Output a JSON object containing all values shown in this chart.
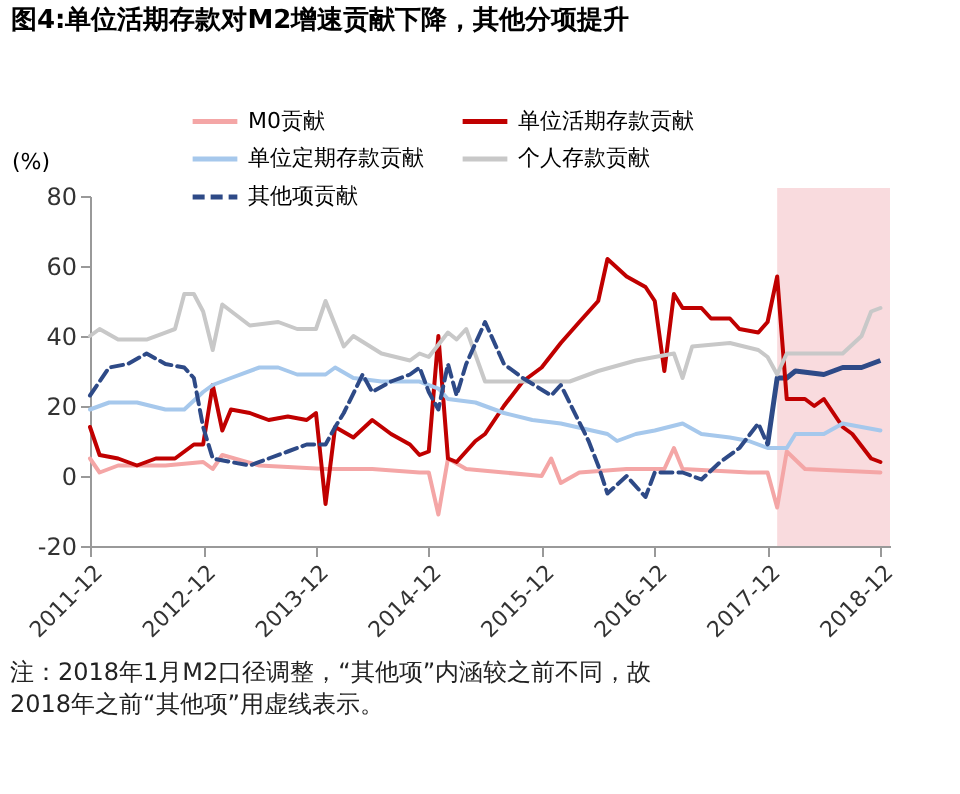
{
  "chart_data": {
    "type": "line",
    "title": "图4:单位活期存款对M2增速贡献下降，其他分项提升",
    "ylabel": "(%)",
    "xlim": [
      "2011-12",
      "2019-01"
    ],
    "xticks": [
      "2011-12",
      "2012-12",
      "2013-12",
      "2014-12",
      "2015-12",
      "2016-12",
      "2017-12",
      "2018-12"
    ],
    "ylim": [
      -20,
      80
    ],
    "yticks": [
      -20,
      0,
      20,
      40,
      60,
      80
    ],
    "grid": false,
    "legend": "top",
    "marker": "none",
    "bands": [
      {
        "axis": "x",
        "from": "2018-01",
        "to": "2019-01",
        "color": "#f8d7da"
      }
    ],
    "series": [
      {
        "name": "M0贡献",
        "color": "#f4a6a6",
        "line_style": "solid",
        "x": [
          "2011-12",
          "2012-01",
          "2012-03",
          "2012-08",
          "2012-12",
          "2013-01",
          "2013-02",
          "2013-06",
          "2014-01",
          "2014-06",
          "2014-11",
          "2014-12",
          "2015-01",
          "2015-02",
          "2015-04",
          "2015-08",
          "2015-12",
          "2016-01",
          "2016-02",
          "2016-04",
          "2016-09",
          "2017-01",
          "2017-02",
          "2017-03",
          "2017-10",
          "2017-12",
          "2018-01",
          "2018-02",
          "2018-04",
          "2018-12"
        ],
        "values": [
          5,
          1,
          3,
          3,
          4,
          2,
          6,
          3,
          2,
          2,
          1,
          1,
          -11,
          5,
          2,
          1,
          0,
          5,
          -2,
          1,
          2,
          2,
          8,
          2,
          1,
          1,
          -9,
          7,
          2,
          1
        ]
      },
      {
        "name": "单位活期存款贡献",
        "color": "#c00000",
        "line_style": "solid",
        "x": [
          "2011-12",
          "2012-01",
          "2012-03",
          "2012-05",
          "2012-07",
          "2012-09",
          "2012-11",
          "2012-12",
          "2013-01",
          "2013-02",
          "2013-03",
          "2013-05",
          "2013-07",
          "2013-09",
          "2013-11",
          "2013-12",
          "2014-01",
          "2014-02",
          "2014-04",
          "2014-06",
          "2014-08",
          "2014-10",
          "2014-11",
          "2014-12",
          "2015-01",
          "2015-02",
          "2015-03",
          "2015-05",
          "2015-06",
          "2015-08",
          "2015-10",
          "2015-12",
          "2016-02",
          "2016-04",
          "2016-06",
          "2016-07",
          "2016-09",
          "2016-11",
          "2016-12",
          "2017-01",
          "2017-02",
          "2017-03",
          "2017-05",
          "2017-06",
          "2017-08",
          "2017-09",
          "2017-11",
          "2017-12",
          "2018-01",
          "2018-02",
          "2018-04",
          "2018-05",
          "2018-06",
          "2018-08",
          "2018-09",
          "2018-11",
          "2018-12"
        ],
        "values": [
          14,
          6,
          5,
          3,
          5,
          5,
          9,
          9,
          26,
          13,
          19,
          18,
          16,
          17,
          16,
          18,
          -8,
          14,
          11,
          16,
          12,
          9,
          6,
          7,
          40,
          5,
          4,
          10,
          12,
          20,
          27,
          31,
          38,
          44,
          50,
          62,
          57,
          54,
          50,
          30,
          52,
          48,
          48,
          45,
          45,
          42,
          41,
          44,
          57,
          22,
          22,
          20,
          22,
          14,
          12,
          5,
          4
        ]
      },
      {
        "name": "单位定期存款贡献",
        "color": "#a6c8ec",
        "line_style": "solid",
        "x": [
          "2011-12",
          "2012-02",
          "2012-05",
          "2012-08",
          "2012-10",
          "2012-12",
          "2013-01",
          "2013-03",
          "2013-06",
          "2013-08",
          "2013-10",
          "2014-01",
          "2014-02",
          "2014-04",
          "2014-07",
          "2014-11",
          "2015-01",
          "2015-02",
          "2015-05",
          "2015-08",
          "2015-11",
          "2016-02",
          "2016-07",
          "2016-08",
          "2016-10",
          "2016-12",
          "2017-03",
          "2017-05",
          "2017-08",
          "2017-10",
          "2017-12",
          "2018-02",
          "2018-03",
          "2018-06",
          "2018-08",
          "2018-10",
          "2018-12"
        ],
        "values": [
          19,
          21,
          21,
          19,
          19,
          24,
          26,
          28,
          31,
          31,
          29,
          29,
          31,
          28,
          27,
          27,
          25,
          22,
          21,
          18,
          16,
          15,
          12,
          10,
          12,
          13,
          15,
          12,
          11,
          10,
          8,
          8,
          12,
          12,
          15,
          14,
          13
        ]
      },
      {
        "name": "个人存款贡献",
        "color": "#c8c8c8",
        "line_style": "solid",
        "x": [
          "2011-12",
          "2012-01",
          "2012-03",
          "2012-06",
          "2012-08",
          "2012-09",
          "2012-10",
          "2012-11",
          "2012-12",
          "2013-01",
          "2013-02",
          "2013-05",
          "2013-08",
          "2013-10",
          "2013-12",
          "2014-01",
          "2014-03",
          "2014-04",
          "2014-07",
          "2014-10",
          "2014-11",
          "2014-12",
          "2015-02",
          "2015-03",
          "2015-04",
          "2015-06",
          "2015-10",
          "2016-03",
          "2016-06",
          "2016-10",
          "2017-02",
          "2017-03",
          "2017-04",
          "2017-08",
          "2017-11",
          "2017-12",
          "2018-01",
          "2018-02",
          "2018-08",
          "2018-10",
          "2018-11",
          "2018-12"
        ],
        "values": [
          40,
          42,
          39,
          39,
          41,
          42,
          52,
          52,
          47,
          36,
          49,
          43,
          44,
          42,
          42,
          50,
          37,
          40,
          35,
          33,
          35,
          34,
          41,
          39,
          42,
          27,
          27,
          27,
          30,
          33,
          35,
          28,
          37,
          38,
          36,
          34,
          29,
          35,
          35,
          40,
          47,
          48
        ]
      },
      {
        "name": "其他项贡献",
        "color": "#2e4a87",
        "line_style": "dashed",
        "x": [
          "2011-12",
          "2012-02",
          "2012-04",
          "2012-06",
          "2012-08",
          "2012-10",
          "2012-11",
          "2012-12",
          "2013-01",
          "2013-03",
          "2013-05",
          "2013-07",
          "2013-09",
          "2013-11",
          "2014-01",
          "2014-02",
          "2014-03",
          "2014-05",
          "2014-06",
          "2014-08",
          "2014-10",
          "2014-11",
          "2014-12",
          "2015-01",
          "2015-02",
          "2015-03",
          "2015-04",
          "2015-06",
          "2015-08",
          "2015-10",
          "2016-01",
          "2016-02",
          "2016-05",
          "2016-06",
          "2016-07",
          "2016-09",
          "2016-11",
          "2016-12",
          "2017-03",
          "2017-05",
          "2017-07",
          "2017-09",
          "2017-11",
          "2017-12"
        ],
        "values": [
          23,
          31,
          32,
          35,
          32,
          31,
          28,
          14,
          5,
          4,
          3,
          5,
          7,
          9,
          9,
          14,
          18,
          29,
          24,
          27,
          29,
          31,
          24,
          19,
          32,
          23,
          32,
          44,
          32,
          28,
          23,
          26,
          10,
          3,
          -5,
          0,
          -6,
          1,
          1,
          -1,
          4,
          8,
          15,
          9
        ]
      },
      {
        "color": "#2e4a87",
        "line_style": "solid",
        "x": [
          "2017-12",
          "2018-01",
          "2018-02",
          "2018-03",
          "2018-06",
          "2018-08",
          "2018-10",
          "2018-12"
        ],
        "values": [
          9,
          28,
          28,
          30,
          29,
          31,
          31,
          33
        ]
      }
    ],
    "annotations": [
      "注：2018年1月M2口径调整，“其他项”内涵较之前不同，故2018年之前“其他项”用虚线表示。"
    ]
  }
}
